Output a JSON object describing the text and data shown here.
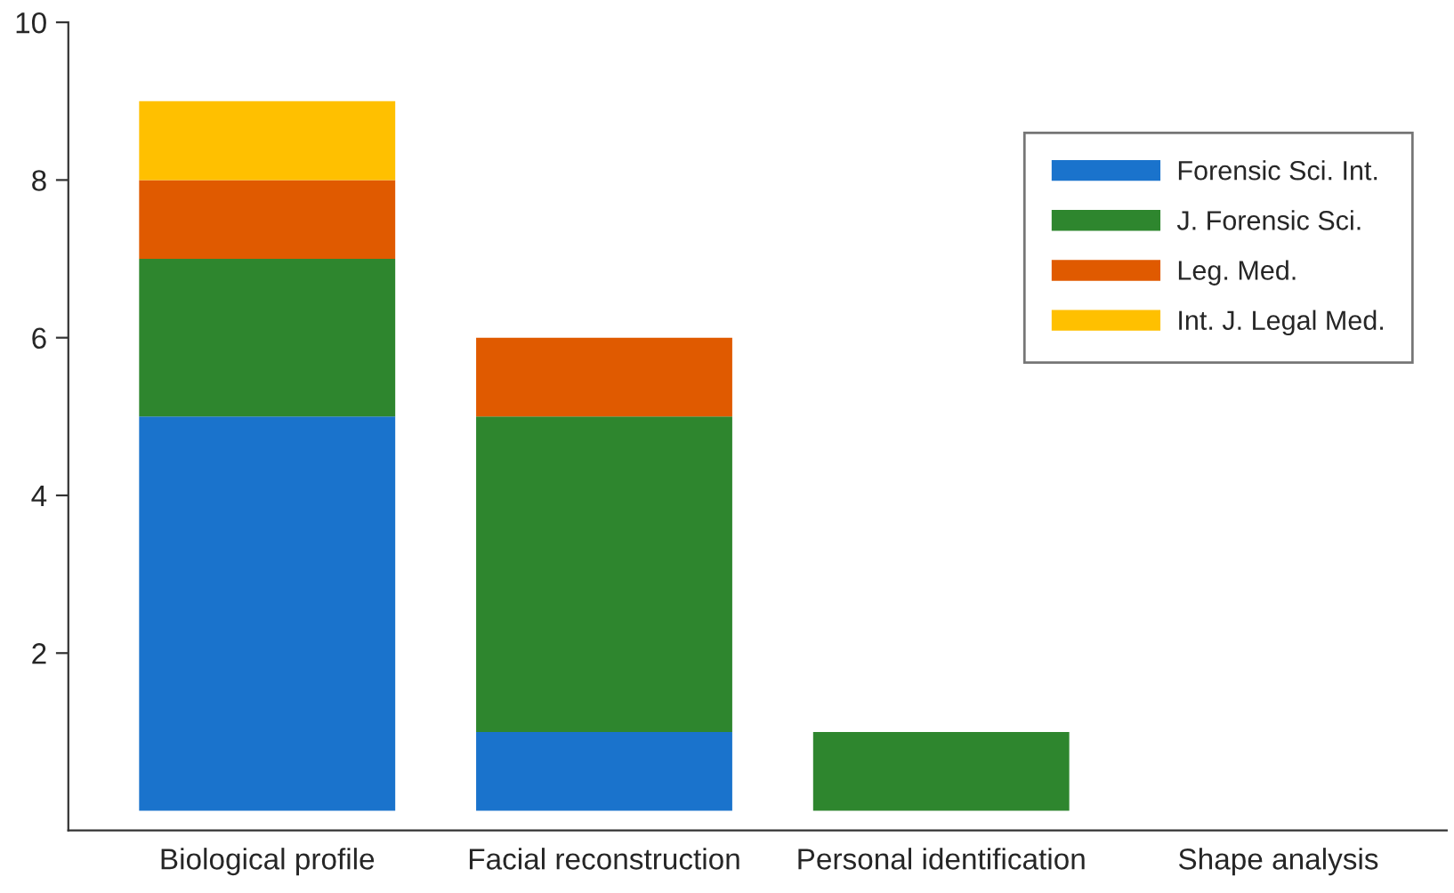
{
  "chart_data": {
    "type": "bar",
    "stacked": true,
    "categories": [
      "Biological profile",
      "Facial reconstruction",
      "Personal identification",
      "Shape analysis"
    ],
    "series": [
      {
        "name": "Forensic Sci. Int.",
        "color": "#1a73cc",
        "values": [
          5,
          1,
          0,
          0
        ]
      },
      {
        "name": "J. Forensic Sci.",
        "color": "#2e862e",
        "values": [
          2,
          4,
          1,
          0
        ]
      },
      {
        "name": "Leg. Med.",
        "color": "#e05a00",
        "values": [
          1,
          1,
          0,
          0
        ]
      },
      {
        "name": "Int. J. Legal Med.",
        "color": "#ffc000",
        "values": [
          1,
          0,
          0,
          0
        ]
      }
    ],
    "ylim": [
      -0.25,
      10
    ],
    "yticks": [
      2,
      4,
      6,
      8,
      10
    ],
    "grid": false,
    "legend": "top right"
  }
}
